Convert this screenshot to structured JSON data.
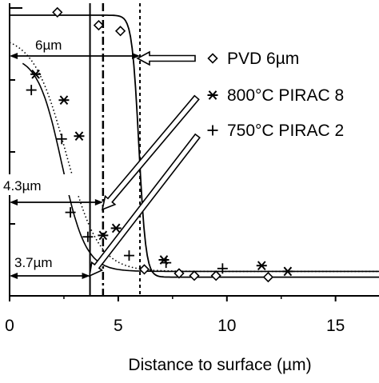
{
  "colors": {
    "ink": "#000000",
    "background": "#ffffff"
  },
  "chart_data": {
    "type": "scatter",
    "xlabel": "Distance to surface (µm)",
    "ylabel": "",
    "xlim": [
      0,
      17
    ],
    "x_ticks": [
      0,
      5,
      10,
      15
    ],
    "x_tick_labels": [
      "0",
      "5",
      "10",
      "15"
    ],
    "legend_position": "top-right",
    "grid": false,
    "series": [
      {
        "name": "PVD 6µm",
        "marker": "diamond",
        "points": [
          {
            "x": 2.2,
            "y": 0.985
          },
          {
            "x": 4.1,
            "y": 0.94
          },
          {
            "x": 5.1,
            "y": 0.92
          },
          {
            "x": 6.2,
            "y": 0.092
          },
          {
            "x": 7.8,
            "y": 0.078
          },
          {
            "x": 8.5,
            "y": 0.07
          },
          {
            "x": 9.5,
            "y": 0.07
          },
          {
            "x": 11.9,
            "y": 0.065
          }
        ]
      },
      {
        "name": "800°C PIRAC 8",
        "marker": "star",
        "points": [
          {
            "x": 1.2,
            "y": 0.77
          },
          {
            "x": 2.5,
            "y": 0.68
          },
          {
            "x": 3.2,
            "y": 0.555
          },
          {
            "x": 4.3,
            "y": 0.21
          },
          {
            "x": 4.9,
            "y": 0.235
          },
          {
            "x": 7.1,
            "y": 0.125
          },
          {
            "x": 11.6,
            "y": 0.105
          },
          {
            "x": 12.8,
            "y": 0.085
          }
        ]
      },
      {
        "name": "750°C PIRAC 2",
        "marker": "plus",
        "points": [
          {
            "x": 1.0,
            "y": 0.715
          },
          {
            "x": 2.4,
            "y": 0.545
          },
          {
            "x": 2.8,
            "y": 0.29
          },
          {
            "x": 3.6,
            "y": 0.205
          },
          {
            "x": 5.5,
            "y": 0.14
          },
          {
            "x": 7.2,
            "y": 0.115
          },
          {
            "x": 9.8,
            "y": 0.095
          }
        ]
      }
    ],
    "annotations": [
      {
        "text": "6µm",
        "x_from": 0,
        "x_to": 6.0
      },
      {
        "text": "4.3µm",
        "x_from": 0,
        "x_to": 4.3
      },
      {
        "text": "3.7µm",
        "x_from": 0,
        "x_to": 3.7
      }
    ]
  }
}
